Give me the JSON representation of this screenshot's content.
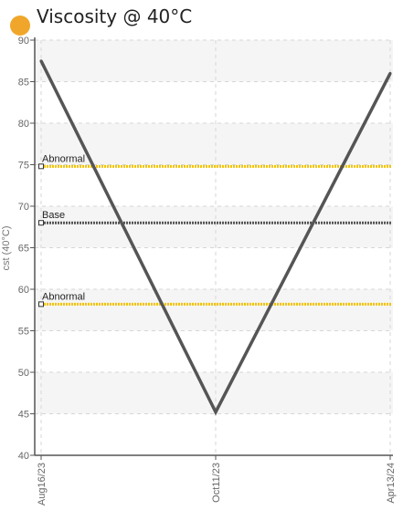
{
  "chart_data": {
    "type": "line",
    "title": "Viscosity @ 40°C",
    "ylabel": "cst (40°C)",
    "xlabel": "",
    "ylim": [
      40,
      90
    ],
    "yticks": [
      40,
      45,
      50,
      55,
      60,
      65,
      70,
      75,
      80,
      85,
      90
    ],
    "categories": [
      "Aug16/23",
      "Oct11/23",
      "Apr13/24"
    ],
    "series": [
      {
        "values": [
          87.5,
          45.2,
          86.0
        ]
      }
    ],
    "reference_lines": [
      {
        "label": "Abnormal",
        "value": 74.8,
        "color": "#f2c200"
      },
      {
        "label": "Base",
        "value": 68.0,
        "color": "#555555"
      },
      {
        "label": "Abnormal",
        "value": 58.2,
        "color": "#f2c200"
      }
    ],
    "grid": true,
    "colors": {
      "title_dot": "#f0a62a",
      "series": "#555555",
      "band": "#f5f5f5",
      "grid": "#d6d6d6",
      "axis": "#555555"
    }
  }
}
